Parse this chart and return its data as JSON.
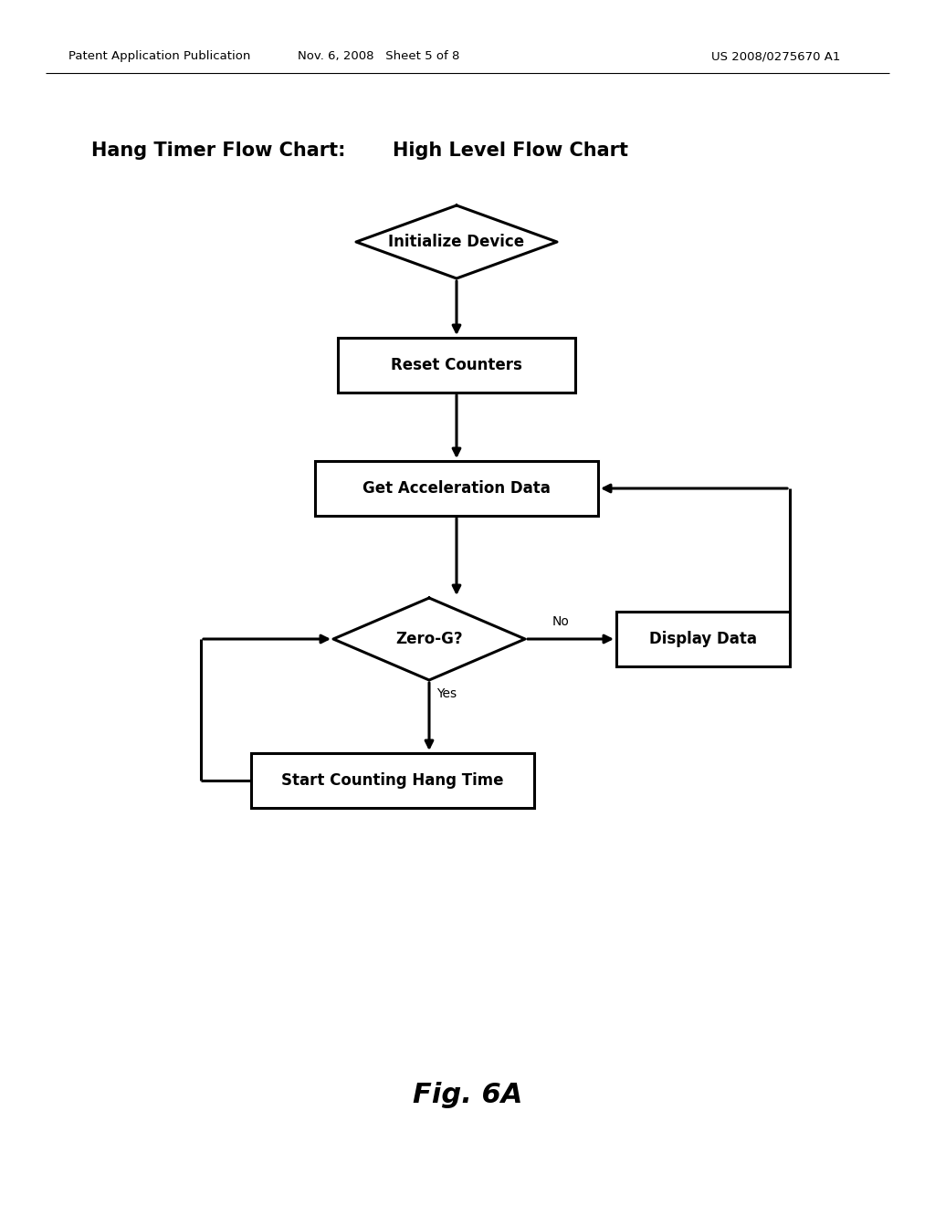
{
  "background_color": "#ffffff",
  "header_left": "Patent Application Publication",
  "header_mid": "Nov. 6, 2008   Sheet 5 of 8",
  "header_right": "US 2008/0275670 A1",
  "title_bold": "Hang Timer Flow Chart:",
  "title_normal": "High Level Flow Chart",
  "fig_label": "Fig. 6A",
  "line_color": "#000000",
  "text_color": "#000000",
  "lw": 2.2
}
